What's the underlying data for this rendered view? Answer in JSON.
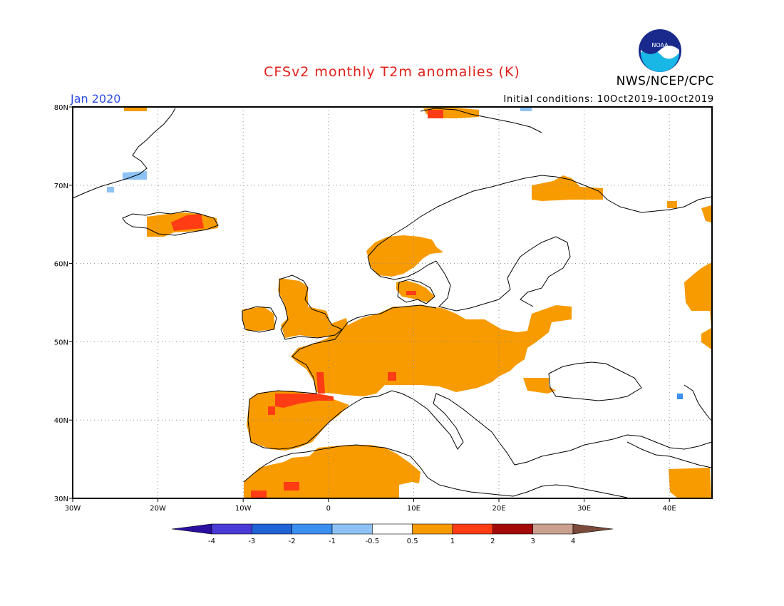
{
  "header": {
    "title": "CFSv2 monthly T2m anomalies (K)",
    "agency": "NWS/NCEP/CPC",
    "period": "Jan 2020",
    "initial_conditions": "Initial conditions: 10Oct2019-10Oct2019",
    "logo_text": "NOAA"
  },
  "axes": {
    "lat_labels": [
      "80N",
      "70N",
      "60N",
      "50N",
      "40N",
      "30N"
    ],
    "lon_labels": [
      "30W",
      "20W",
      "10W",
      "0",
      "10E",
      "20E",
      "30E",
      "40E"
    ]
  },
  "colorbar": {
    "labels": [
      "-4",
      "-3",
      "-2",
      "-1",
      "-0.5",
      "0.5",
      "1",
      "2",
      "3",
      "4"
    ],
    "colors": [
      "#2a0fa0",
      "#4a3ad6",
      "#1f63d6",
      "#3b8ff0",
      "#8ec2f5",
      "#ffffff",
      "#f79b00",
      "#ff3c14",
      "#a50a0a",
      "#caa08e",
      "#7a4a3a"
    ]
  },
  "colors": {
    "warm1": "#f79b00",
    "warm2": "#ff3c14",
    "cool1": "#8ec2f5",
    "cool2": "#3b8ff0"
  }
}
